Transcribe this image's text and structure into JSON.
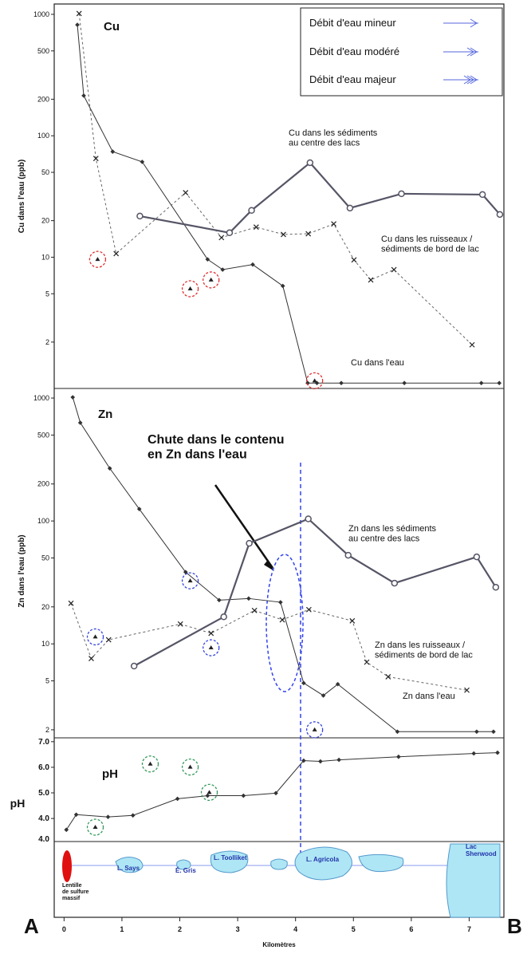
{
  "chart_data": [
    {
      "type": "line",
      "title": "Cu",
      "y_label": "Cu dans l'eau (ppb)",
      "log_scale": true,
      "ylim": [
        0.83,
        1217
      ],
      "yticks": [
        1000,
        500,
        200,
        100,
        50,
        20,
        10,
        5,
        2
      ],
      "xlim": [
        -0.17,
        7.6
      ],
      "series": [
        {
          "name": "Cu dans l'eau",
          "style": "thin",
          "color": "#333333",
          "x": [
            0.23,
            0.34,
            0.84,
            1.35,
            2.48,
            2.74,
            3.26,
            3.78,
            4.21,
            4.37,
            4.79,
            5.88,
            7.21,
            7.52
          ],
          "values": [
            820,
            214,
            74,
            61,
            9.6,
            7.9,
            8.7,
            5.8,
            0.92,
            0.92,
            0.92,
            0.92,
            0.92,
            0.92
          ]
        },
        {
          "name": "Cu dans les ruisseaux /\nsédiments de bord de lac",
          "style": "dashed",
          "color": "#666666",
          "x": [
            0.26,
            0.55,
            0.9,
            2.1,
            2.72,
            3.32,
            3.79,
            4.22,
            4.66,
            5.01,
            5.3,
            5.7,
            7.05
          ],
          "values": [
            1016,
            65,
            10.7,
            34,
            14.5,
            17.7,
            15.4,
            15.6,
            18.8,
            9.5,
            6.5,
            7.9,
            1.9
          ]
        },
        {
          "name": "Cu dans les sédiments\nau centre des lacs",
          "style": "thick",
          "color": "#555566",
          "x": [
            1.31,
            2.86,
            3.24,
            4.25,
            4.94,
            5.83,
            7.23,
            7.53
          ],
          "values": [
            21.8,
            15.9,
            24.3,
            60,
            25.4,
            33.3,
            32.8,
            22.5
          ]
        }
      ],
      "circled": {
        "color": "#e03030",
        "x": [
          0.58,
          2.18,
          2.54,
          4.33
        ],
        "values": [
          9.6,
          5.5,
          6.5,
          0.96
        ]
      }
    },
    {
      "type": "line",
      "title": "Zn",
      "y_label": "Zn dans l'eau (ppb)",
      "log_scale": true,
      "ylim": [
        1.72,
        1197
      ],
      "yticks": [
        1000,
        500,
        200,
        100,
        50,
        20,
        10,
        5,
        2
      ],
      "xlim": [
        -0.17,
        7.6
      ],
      "annotation": "Chute dans le contenu\nen Zn dans l'eau",
      "series": [
        {
          "name": "Zn dans l'eau",
          "style": "thin",
          "color": "#333333",
          "x": [
            0.15,
            0.28,
            0.79,
            1.3,
            2.1,
            2.68,
            3.19,
            3.74,
            4.14,
            4.48,
            4.73,
            5.76,
            7.13,
            7.42
          ],
          "values": [
            1015,
            630,
            268,
            125,
            38.4,
            22.7,
            23.4,
            21.8,
            4.8,
            3.8,
            4.7,
            1.93,
            1.93,
            1.93
          ]
        },
        {
          "name": "Zn dans les ruisseaux /\nsédiments de bord de lac",
          "style": "dashed",
          "color": "#666666",
          "x": [
            0.12,
            0.47,
            0.77,
            2.01,
            2.54,
            3.29,
            3.77,
            4.23,
            4.98,
            5.23,
            5.6,
            6.96
          ],
          "values": [
            21.4,
            7.6,
            10.8,
            14.5,
            12.2,
            18.7,
            15.7,
            19,
            15.4,
            7.1,
            5.4,
            4.2
          ]
        },
        {
          "name": "Zn dans les sédiments\nau centre des lacs",
          "style": "thick",
          "color": "#555566",
          "x": [
            1.21,
            2.76,
            3.2,
            4.22,
            4.91,
            5.71,
            7.13,
            7.46
          ],
          "values": [
            6.6,
            16.6,
            65.8,
            104,
            52.6,
            31.2,
            51,
            28.9
          ]
        }
      ],
      "circled": {
        "color": "#3344dd",
        "x": [
          0.54,
          2.18,
          2.54,
          4.33
        ],
        "values": [
          11.4,
          32.6,
          9.3,
          2.0
        ]
      }
    },
    {
      "type": "line",
      "title": "pH",
      "y_label": "pH",
      "log_scale": false,
      "ylim": [
        3.1,
        7.15
      ],
      "yticks": [
        {
          "value": 7,
          "label": "7.0"
        },
        {
          "value": 6,
          "label": "6.0"
        },
        {
          "value": 5,
          "label": "5.0"
        },
        {
          "value": 4,
          "label": "4.0"
        }
      ],
      "extra_label": "4.0",
      "xlim": [
        -0.17,
        7.6
      ],
      "series": [
        {
          "style": "thin",
          "color": "#333333",
          "x": [
            0.04,
            0.21,
            0.76,
            1.19,
            1.96,
            2.48,
            3.1,
            3.66,
            4.14,
            4.43,
            4.75,
            5.78,
            7.08,
            7.49
          ],
          "values": [
            3.56,
            4.15,
            4.06,
            4.12,
            4.77,
            4.89,
            4.89,
            4.99,
            6.26,
            6.23,
            6.29,
            6.41,
            6.54,
            6.57
          ]
        }
      ],
      "circled": {
        "color": "#33995a",
        "x": [
          0.54,
          1.49,
          2.18,
          2.51
        ],
        "values": [
          3.66,
          6.13,
          6.01,
          5.02
        ]
      }
    }
  ],
  "x_axis": {
    "label": "Kilomètres",
    "xlim": [
      -0.17,
      7.6
    ],
    "xticks": [
      0,
      1,
      2,
      3,
      4,
      5,
      6,
      7
    ]
  },
  "legend": [
    "Débit d'eau mineur",
    "Débit d'eau modéré",
    "Débit d'eau majeur"
  ],
  "diagram": {
    "source": "Lentille\nde sulfure\nmassif",
    "lakes": [
      "L. Says",
      "É. Gris",
      "L. Toolliket",
      "L. Agricola",
      "Lac\nSherwood"
    ]
  },
  "corner_labels": [
    "A",
    "B"
  ]
}
